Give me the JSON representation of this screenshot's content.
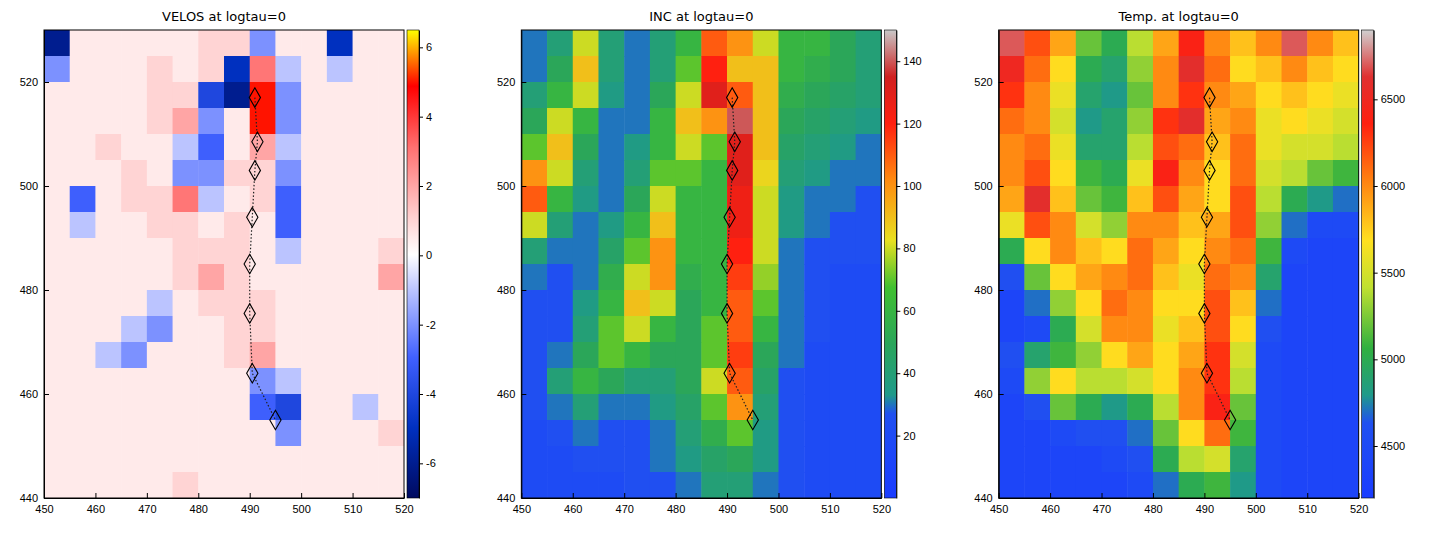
{
  "chart_data": [
    {
      "type": "heatmap",
      "title": "VELOS at logtau=0",
      "x": [
        452.5,
        457.5,
        462.5,
        467.5,
        472.5,
        477.5,
        482.5,
        487.5,
        492.5,
        497.5,
        502.5,
        507.5,
        512.5,
        517.5
      ],
      "y": [
        527.5,
        522.5,
        517.5,
        512.5,
        507.5,
        502.5,
        497.5,
        492.5,
        487.5,
        482.5,
        477.5,
        472.5,
        467.5,
        462.5,
        457.5,
        452.5,
        447.5,
        442.5
      ],
      "z": [
        [
          -6,
          0.5,
          0.5,
          0.5,
          0.5,
          0.5,
          1,
          1,
          -2,
          0.5,
          0.5,
          -5,
          0.5,
          0.5
        ],
        [
          -2,
          0.5,
          0.5,
          0.5,
          1,
          0.5,
          1,
          -5,
          3,
          -1,
          0.5,
          -1,
          0.5,
          0.5
        ],
        [
          0.5,
          0.5,
          0.5,
          0.5,
          1,
          1,
          -4,
          -6,
          5,
          -2,
          0.5,
          0.5,
          0.5,
          0.5
        ],
        [
          0.5,
          0.5,
          0.5,
          0.5,
          1,
          2,
          -2,
          0.5,
          5,
          -2,
          0.5,
          0.5,
          0.5,
          0.5
        ],
        [
          0.5,
          0.5,
          1,
          0.5,
          0.5,
          -1,
          -3,
          0.5,
          2,
          -1,
          0.5,
          0.5,
          0.5,
          0.5
        ],
        [
          0.5,
          0.5,
          0.5,
          1,
          0.5,
          -2,
          -2,
          1,
          1,
          -2,
          0.5,
          0.5,
          0.5,
          0.5
        ],
        [
          0.5,
          -3,
          0.5,
          1,
          1,
          3,
          -1,
          0.5,
          1,
          -3,
          0.5,
          0.5,
          0.5,
          0.5
        ],
        [
          0.5,
          -1,
          0.5,
          0.5,
          1,
          1,
          0.5,
          1,
          0.5,
          -3,
          0.5,
          0.5,
          0.5,
          0.5
        ],
        [
          0.5,
          0.5,
          0.5,
          0.5,
          0.5,
          1,
          1,
          1,
          0.5,
          -1,
          0.5,
          0.5,
          0.5,
          1
        ],
        [
          0.5,
          0.5,
          0.5,
          0.5,
          0.5,
          1,
          2,
          1,
          0.5,
          0.5,
          0.5,
          0.5,
          0.5,
          2
        ],
        [
          0.5,
          0.5,
          0.5,
          0.5,
          -1,
          0.5,
          1,
          1,
          1,
          0.5,
          0.5,
          0.5,
          0.5,
          0.5
        ],
        [
          0.5,
          0.5,
          0.5,
          -1,
          -2,
          0.5,
          0.5,
          1,
          1,
          0.5,
          0.5,
          0.5,
          0.5,
          0.5
        ],
        [
          0.5,
          0.5,
          -1,
          -2,
          0.5,
          0.5,
          0.5,
          1,
          2,
          0.5,
          0.5,
          0.5,
          0.5,
          0.5
        ],
        [
          0.5,
          0.5,
          0.5,
          0.5,
          0.5,
          0.5,
          0.5,
          0.5,
          -2,
          -1,
          0.5,
          0.5,
          0.5,
          0.5
        ],
        [
          0.5,
          0.5,
          0.5,
          0.5,
          0.5,
          0.5,
          0.5,
          0.5,
          -3,
          -4,
          0.5,
          0.5,
          -1,
          0.5
        ],
        [
          0.5,
          0.5,
          0.5,
          0.5,
          0.5,
          0.5,
          0.5,
          0.5,
          0.5,
          -2,
          0.5,
          0.5,
          0.5,
          1
        ],
        [
          0.5,
          0.5,
          0.5,
          0.5,
          0.5,
          0.5,
          0.5,
          0.5,
          0.5,
          0.5,
          0.5,
          0.5,
          0.5,
          0.5
        ],
        [
          0.5,
          0.5,
          0.5,
          0.5,
          0.5,
          1,
          0.5,
          0.5,
          0.5,
          0.5,
          0.5,
          0.5,
          0.5,
          0.5
        ]
      ],
      "xlim": [
        450,
        520
      ],
      "ylim": [
        440,
        530
      ],
      "xticks": [
        450,
        460,
        470,
        480,
        490,
        500,
        510,
        520
      ],
      "yticks": [
        440,
        460,
        480,
        500,
        520
      ],
      "zlim": [
        -7,
        6.5
      ],
      "zticks": [
        -6,
        -4,
        -2,
        0,
        2,
        4,
        6
      ],
      "markers": {
        "x": [
          491,
          491.5,
          491,
          490.5,
          490,
          490,
          490.5,
          495
        ],
        "y": [
          517,
          508.5,
          503,
          494,
          485,
          475.5,
          464,
          455
        ],
        "marker": "diamond"
      }
    },
    {
      "type": "heatmap",
      "title": "INC at logtau=0",
      "x": [
        452.5,
        457.5,
        462.5,
        467.5,
        472.5,
        477.5,
        482.5,
        487.5,
        492.5,
        497.5,
        502.5,
        507.5,
        512.5,
        517.5
      ],
      "y": [
        527.5,
        522.5,
        517.5,
        512.5,
        507.5,
        502.5,
        497.5,
        492.5,
        487.5,
        482.5,
        477.5,
        472.5,
        467.5,
        462.5,
        457.5,
        452.5,
        447.5,
        442.5
      ],
      "z": [
        [
          30,
          40,
          80,
          40,
          30,
          40,
          60,
          110,
          100,
          80,
          60,
          60,
          50,
          40
        ],
        [
          30,
          50,
          90,
          40,
          30,
          40,
          70,
          120,
          90,
          90,
          60,
          55,
          50,
          40
        ],
        [
          40,
          60,
          80,
          35,
          30,
          50,
          80,
          130,
          110,
          90,
          55,
          50,
          45,
          40
        ],
        [
          50,
          80,
          60,
          30,
          30,
          60,
          90,
          100,
          140,
          90,
          50,
          45,
          40,
          35
        ],
        [
          70,
          90,
          50,
          30,
          35,
          60,
          80,
          70,
          130,
          90,
          45,
          40,
          35,
          30
        ],
        [
          100,
          80,
          40,
          30,
          40,
          70,
          70,
          60,
          130,
          85,
          40,
          35,
          30,
          30
        ],
        [
          110,
          60,
          35,
          30,
          50,
          80,
          60,
          60,
          125,
          80,
          35,
          30,
          30,
          25
        ],
        [
          80,
          40,
          30,
          35,
          60,
          90,
          60,
          60,
          125,
          80,
          35,
          30,
          25,
          25
        ],
        [
          40,
          30,
          30,
          45,
          70,
          100,
          60,
          60,
          120,
          80,
          30,
          25,
          25,
          25
        ],
        [
          30,
          25,
          30,
          55,
          80,
          100,
          55,
          60,
          115,
          75,
          30,
          25,
          20,
          20
        ],
        [
          25,
          25,
          35,
          60,
          90,
          80,
          50,
          60,
          110,
          70,
          30,
          25,
          20,
          20
        ],
        [
          25,
          25,
          40,
          70,
          80,
          60,
          50,
          70,
          110,
          60,
          30,
          25,
          20,
          20
        ],
        [
          25,
          30,
          50,
          70,
          60,
          50,
          50,
          70,
          115,
          50,
          30,
          20,
          20,
          20
        ],
        [
          25,
          40,
          60,
          50,
          40,
          40,
          50,
          80,
          110,
          45,
          25,
          20,
          20,
          20
        ],
        [
          25,
          30,
          40,
          30,
          30,
          35,
          45,
          70,
          100,
          40,
          25,
          20,
          20,
          20
        ],
        [
          20,
          25,
          30,
          25,
          25,
          30,
          40,
          55,
          70,
          35,
          25,
          20,
          20,
          20
        ],
        [
          20,
          20,
          25,
          25,
          25,
          30,
          35,
          45,
          50,
          35,
          25,
          20,
          20,
          20
        ],
        [
          20,
          20,
          20,
          20,
          25,
          25,
          30,
          40,
          40,
          30,
          25,
          20,
          20,
          20
        ]
      ],
      "xlim": [
        450,
        520
      ],
      "ylim": [
        440,
        530
      ],
      "xticks": [
        450,
        460,
        470,
        480,
        490,
        500,
        510,
        520
      ],
      "yticks": [
        440,
        460,
        480,
        500,
        520
      ],
      "zlim": [
        0,
        150
      ],
      "zticks": [
        20,
        40,
        60,
        80,
        100,
        120,
        140
      ],
      "markers": {
        "x": [
          491,
          491.5,
          491,
          490.5,
          490,
          490,
          490.5,
          495
        ],
        "y": [
          517,
          508.5,
          503,
          494,
          485,
          475.5,
          464,
          455
        ],
        "marker": "diamond"
      }
    },
    {
      "type": "heatmap",
      "title": "Temp. at logtau=0",
      "x": [
        452.5,
        457.5,
        462.5,
        467.5,
        472.5,
        477.5,
        482.5,
        487.5,
        492.5,
        497.5,
        502.5,
        507.5,
        512.5,
        517.5
      ],
      "y": [
        527.5,
        522.5,
        517.5,
        512.5,
        507.5,
        502.5,
        497.5,
        492.5,
        487.5,
        482.5,
        477.5,
        472.5,
        467.5,
        462.5,
        457.5,
        452.5,
        447.5,
        442.5
      ],
      "z": [
        [
          6700,
          6200,
          5900,
          5200,
          5000,
          5400,
          5900,
          6400,
          6000,
          5800,
          6000,
          6700,
          6000,
          5800
        ],
        [
          6500,
          6100,
          5700,
          5000,
          4900,
          5300,
          6000,
          6600,
          6100,
          5700,
          5800,
          6000,
          5800,
          5700
        ],
        [
          6300,
          6000,
          5600,
          4900,
          4800,
          5200,
          6000,
          6300,
          6000,
          5900,
          5700,
          5800,
          5700,
          5600
        ],
        [
          6100,
          6000,
          5500,
          4800,
          4900,
          5300,
          6300,
          6600,
          5900,
          6000,
          5600,
          5700,
          5600,
          5500
        ],
        [
          6000,
          6100,
          5600,
          4900,
          4900,
          5400,
          6200,
          6100,
          5800,
          6100,
          5600,
          5500,
          5500,
          5400
        ],
        [
          6000,
          6200,
          5700,
          5100,
          5000,
          5600,
          6400,
          6000,
          5700,
          6100,
          5500,
          5400,
          5200,
          5100
        ],
        [
          5900,
          6600,
          5800,
          5200,
          5100,
          5800,
          6200,
          5900,
          5700,
          6200,
          5400,
          5000,
          4800,
          4700
        ],
        [
          5600,
          6200,
          6000,
          5500,
          5300,
          6000,
          6000,
          5800,
          5900,
          6200,
          5300,
          4700,
          4500,
          4500
        ],
        [
          5000,
          5700,
          6000,
          5800,
          5700,
          6100,
          5900,
          5700,
          6000,
          6100,
          5100,
          4500,
          4400,
          4400
        ],
        [
          4600,
          5200,
          5700,
          5900,
          6000,
          6100,
          5800,
          5600,
          6100,
          6000,
          4900,
          4400,
          4400,
          4400
        ],
        [
          4400,
          4700,
          5300,
          5700,
          6100,
          6000,
          5700,
          5700,
          6200,
          5800,
          4700,
          4400,
          4400,
          4400
        ],
        [
          4400,
          4500,
          5000,
          5500,
          6000,
          6000,
          5600,
          5800,
          6200,
          5700,
          4600,
          4400,
          4400,
          4400
        ],
        [
          4600,
          4900,
          5100,
          5300,
          5700,
          5900,
          5700,
          5900,
          6300,
          5500,
          4500,
          4400,
          4400,
          4400
        ],
        [
          4500,
          5300,
          5700,
          5400,
          5400,
          5500,
          5700,
          6000,
          6300,
          5400,
          4500,
          4400,
          4400,
          4400
        ],
        [
          4400,
          4600,
          5200,
          5000,
          4800,
          5000,
          5400,
          6000,
          6400,
          5200,
          4500,
          4400,
          4400,
          4400
        ],
        [
          4400,
          4400,
          4500,
          4600,
          4600,
          4700,
          5200,
          5700,
          6100,
          5100,
          4500,
          4400,
          4400,
          4400
        ],
        [
          4400,
          4400,
          4400,
          4400,
          4500,
          4600,
          5000,
          5400,
          5500,
          4900,
          4500,
          4400,
          4400,
          4400
        ],
        [
          4400,
          4400,
          4400,
          4400,
          4400,
          4500,
          4700,
          5000,
          5100,
          4800,
          4500,
          4400,
          4400,
          4400
        ]
      ],
      "xlim": [
        450,
        520
      ],
      "ylim": [
        440,
        530
      ],
      "xticks": [
        450,
        460,
        470,
        480,
        490,
        500,
        510,
        520
      ],
      "yticks": [
        440,
        460,
        480,
        500,
        520
      ],
      "zlim": [
        4200,
        6900
      ],
      "zticks": [
        4500,
        5000,
        5500,
        6000,
        6500
      ],
      "markers": {
        "x": [
          491,
          491.5,
          491,
          490.5,
          490,
          490,
          490.5,
          495
        ],
        "y": [
          517,
          508.5,
          503,
          494,
          485,
          475.5,
          464,
          455
        ],
        "marker": "diamond"
      }
    }
  ]
}
